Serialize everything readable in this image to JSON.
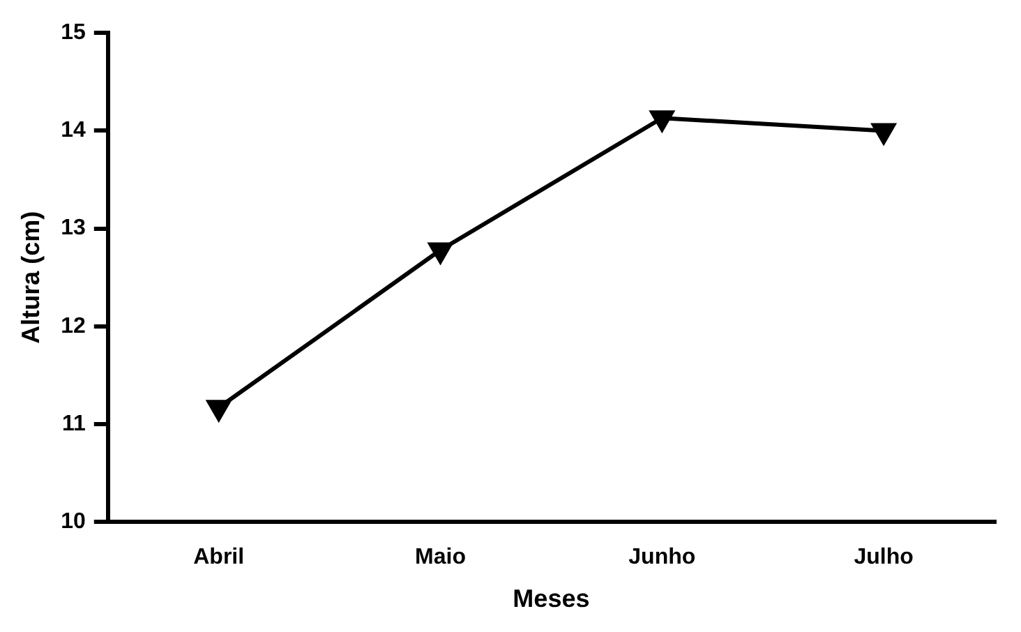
{
  "chart_data": {
    "type": "line",
    "xlabel": "Meses",
    "ylabel": "Altura (cm)",
    "categories": [
      "Abril",
      "Maio",
      "Junho",
      "Julho"
    ],
    "series": [
      {
        "color": "#000000",
        "values": [
          11.17,
          12.78,
          14.13,
          14.0
        ]
      }
    ],
    "ylim": [
      10,
      15
    ],
    "yticks": [
      10,
      11,
      12,
      13,
      14,
      15
    ],
    "grid": false,
    "legend": false,
    "marker": "triangle",
    "line_style": "solid"
  }
}
